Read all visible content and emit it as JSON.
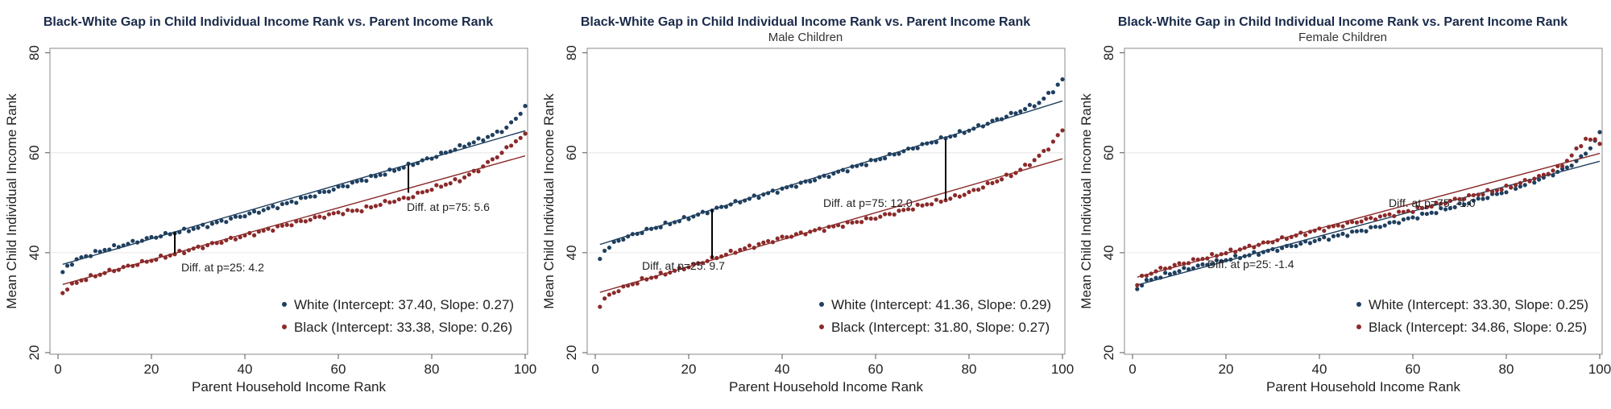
{
  "colors": {
    "white_series": "#1f3f5f",
    "black_series": "#8b2a2a",
    "gap_line": "#000000",
    "grid": "#e6e6e6"
  },
  "chart_data": [
    {
      "type": "scatter",
      "title": "Black-White Gap in Child Individual Income Rank vs. Parent Income Rank",
      "subtitle": "",
      "xlabel": "Parent Household Income Rank",
      "ylabel": "Mean Child Individual Income Rank",
      "xlim": [
        0,
        100
      ],
      "ylim": [
        20,
        80
      ],
      "xticks": [
        "0",
        "20",
        "40",
        "60",
        "80",
        "100"
      ],
      "yticks": [
        "20",
        "40",
        "60",
        "80"
      ],
      "grid": true,
      "legend_position": "bottom-right",
      "annotations": [
        {
          "text": "Diff. at p=25:  4.2",
          "p": 25,
          "top": 44.1,
          "bottom": 39.9
        },
        {
          "text": "Diff. at p=75:  5.6",
          "p": 75,
          "top": 57.6,
          "bottom": 52.0
        }
      ],
      "series": [
        {
          "name": "White (Intercept: 37.40, Slope: 0.27)",
          "color": "#1f3f5f",
          "intercept": 37.4,
          "slope": 0.27,
          "knots": [
            [
              1,
              35.9
            ],
            [
              2,
              37.4
            ],
            [
              5,
              39.0
            ],
            [
              10,
              40.6
            ],
            [
              20,
              43.0
            ],
            [
              30,
              45.0
            ],
            [
              40,
              47.5
            ],
            [
              50,
              50.1
            ],
            [
              60,
              53.0
            ],
            [
              70,
              55.9
            ],
            [
              80,
              59.0
            ],
            [
              88,
              61.8
            ],
            [
              93,
              63.5
            ],
            [
              96,
              65.0
            ],
            [
              98,
              66.8
            ],
            [
              100,
              69.3
            ]
          ]
        },
        {
          "name": "Black (Intercept: 33.38, Slope: 0.26)",
          "color": "#8b2a2a",
          "intercept": 33.38,
          "slope": 0.26,
          "knots": [
            [
              1,
              31.9
            ],
            [
              2,
              33.0
            ],
            [
              5,
              34.5
            ],
            [
              10,
              36.0
            ],
            [
              20,
              38.5
            ],
            [
              30,
              41.0
            ],
            [
              40,
              43.4
            ],
            [
              50,
              45.8
            ],
            [
              60,
              48.0
            ],
            [
              65,
              48.6
            ],
            [
              70,
              50.0
            ],
            [
              75,
              51.0
            ],
            [
              80,
              52.8
            ],
            [
              86,
              54.6
            ],
            [
              90,
              56.6
            ],
            [
              95,
              60.0
            ],
            [
              98,
              62.4
            ],
            [
              100,
              63.5
            ]
          ]
        }
      ]
    },
    {
      "type": "scatter",
      "title": "Black-White Gap in Child Individual Income Rank vs. Parent Income Rank",
      "subtitle": "Male Children",
      "xlabel": "Parent Household Income Rank",
      "ylabel": "Mean Child Individual Income Rank",
      "xlim": [
        0,
        100
      ],
      "ylim": [
        20,
        80
      ],
      "xticks": [
        "0",
        "20",
        "40",
        "60",
        "80",
        "100"
      ],
      "yticks": [
        "20",
        "40",
        "60",
        "80"
      ],
      "grid": true,
      "legend_position": "bottom-right",
      "annotations": [
        {
          "text": "Diff. at p=25:  9.7",
          "p": 25,
          "top": 48.6,
          "bottom": 38.9
        },
        {
          "text": "Diff. at p=75:  12.0",
          "p": 75,
          "top": 62.6,
          "bottom": 50.6
        }
      ],
      "series": [
        {
          "name": "White (Intercept: 41.36, Slope: 0.29)",
          "color": "#1f3f5f",
          "intercept": 41.36,
          "slope": 0.29,
          "knots": [
            [
              1,
              38.8
            ],
            [
              2,
              40.5
            ],
            [
              5,
              42.5
            ],
            [
              10,
              44.2
            ],
            [
              20,
              47.0
            ],
            [
              30,
              50.0
            ],
            [
              40,
              52.7
            ],
            [
              50,
              55.5
            ],
            [
              60,
              58.5
            ],
            [
              70,
              61.5
            ],
            [
              80,
              64.5
            ],
            [
              90,
              68.0
            ],
            [
              95,
              70.0
            ],
            [
              98,
              72.5
            ],
            [
              100,
              74.6
            ]
          ]
        },
        {
          "name": "Black (Intercept: 31.80, Slope: 0.27)",
          "color": "#8b2a2a",
          "intercept": 31.8,
          "slope": 0.27,
          "knots": [
            [
              1,
              29.4
            ],
            [
              2,
              30.8
            ],
            [
              5,
              32.6
            ],
            [
              10,
              34.5
            ],
            [
              20,
              37.2
            ],
            [
              30,
              40.3
            ],
            [
              40,
              43.0
            ],
            [
              50,
              45.0
            ],
            [
              60,
              47.0
            ],
            [
              65,
              48.2
            ],
            [
              70,
              49.5
            ],
            [
              75,
              50.6
            ],
            [
              80,
              52.0
            ],
            [
              85,
              54.0
            ],
            [
              90,
              56.0
            ],
            [
              94,
              58.5
            ],
            [
              97,
              61.0
            ],
            [
              100,
              64.5
            ]
          ]
        }
      ]
    },
    {
      "type": "scatter",
      "title": "Black-White Gap in Child Individual Income Rank vs. Parent Income Rank",
      "subtitle": "Female Children",
      "xlabel": "Parent Household Income Rank",
      "ylabel": "Mean Child Individual Income Rank",
      "xlim": [
        0,
        100
      ],
      "ylim": [
        20,
        80
      ],
      "xticks": [
        "0",
        "20",
        "40",
        "60",
        "80",
        "100"
      ],
      "yticks": [
        "20",
        "40",
        "60",
        "80"
      ],
      "grid": true,
      "legend_position": "bottom-right",
      "annotations": [
        {
          "text": "Diff. at p=25: -1.4",
          "p": 25,
          "top": null,
          "bottom": null
        },
        {
          "text": "Diff. at p=75: -1.0",
          "p": 75,
          "top": null,
          "bottom": null
        }
      ],
      "series": [
        {
          "name": "White (Intercept: 33.30, Slope: 0.25)",
          "color": "#1f3f5f",
          "intercept": 33.3,
          "slope": 0.25,
          "knots": [
            [
              1,
              32.7
            ],
            [
              2,
              33.8
            ],
            [
              5,
              35.0
            ],
            [
              10,
              36.4
            ],
            [
              20,
              38.6
            ],
            [
              30,
              40.5
            ],
            [
              40,
              42.6
            ],
            [
              50,
              44.6
            ],
            [
              60,
              47.0
            ],
            [
              70,
              49.5
            ],
            [
              80,
              52.3
            ],
            [
              88,
              55.0
            ],
            [
              93,
              57.0
            ],
            [
              96,
              59.0
            ],
            [
              98,
              61.0
            ],
            [
              100,
              63.8
            ]
          ]
        },
        {
          "name": "Black (Intercept: 34.86, Slope: 0.25)",
          "color": "#8b2a2a",
          "intercept": 34.86,
          "slope": 0.25,
          "knots": [
            [
              1,
              33.8
            ],
            [
              2,
              35.0
            ],
            [
              5,
              36.4
            ],
            [
              10,
              37.7
            ],
            [
              20,
              40.0
            ],
            [
              30,
              42.3
            ],
            [
              40,
              44.6
            ],
            [
              50,
              46.6
            ],
            [
              60,
              48.5
            ],
            [
              70,
              50.8
            ],
            [
              80,
              53.0
            ],
            [
              88,
              55.5
            ],
            [
              92,
              57.5
            ],
            [
              95,
              60.5
            ],
            [
              97,
              62.8
            ],
            [
              100,
              62.2
            ]
          ]
        }
      ]
    }
  ]
}
